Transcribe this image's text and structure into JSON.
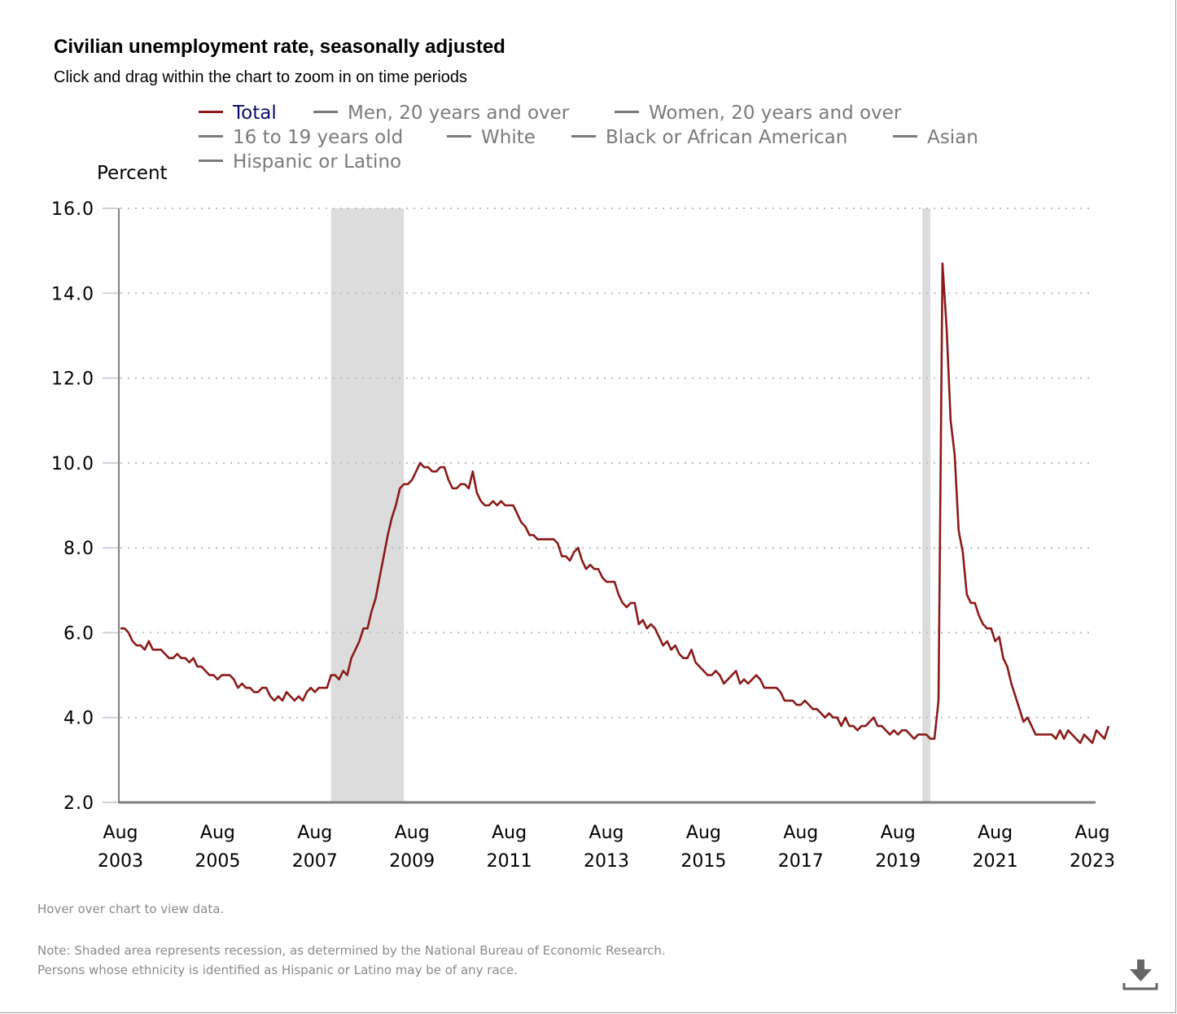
{
  "header": {
    "title": "Civilian unemployment rate, seasonally adjusted",
    "subtitle": "Click and drag within the chart to zoom in on time periods"
  },
  "legend": [
    {
      "label": "Total",
      "color": "#8b1a1a",
      "text_color": "#0b0b6b",
      "active": true
    },
    {
      "label": "Men, 20 years and over",
      "color": "#7a7a7a",
      "text_color": "#7a7a7a",
      "active": false
    },
    {
      "label": "Women, 20 years and over",
      "color": "#7a7a7a",
      "text_color": "#7a7a7a",
      "active": false
    },
    {
      "label": "16 to 19 years old",
      "color": "#7a7a7a",
      "text_color": "#7a7a7a",
      "active": false
    },
    {
      "label": "White",
      "color": "#7a7a7a",
      "text_color": "#7a7a7a",
      "active": false
    },
    {
      "label": "Black or African American",
      "color": "#7a7a7a",
      "text_color": "#7a7a7a",
      "active": false
    },
    {
      "label": "Asian",
      "color": "#7a7a7a",
      "text_color": "#7a7a7a",
      "active": false
    },
    {
      "label": "Hispanic or Latino",
      "color": "#7a7a7a",
      "text_color": "#7a7a7a",
      "active": false
    }
  ],
  "footer": {
    "hover_note": "Hover over chart to view data.",
    "note_line1": "Note: Shaded area represents recession, as determined by the National Bureau of Economic Research.",
    "note_line2": "Persons whose ethnicity is identified as Hispanic or Latino may be of any race.",
    "download_icon": "download-icon"
  },
  "chart_data": {
    "type": "line",
    "title": "Civilian unemployment rate, seasonally adjusted",
    "xlabel": "",
    "ylabel": "Percent",
    "ylim": [
      2.0,
      16.0
    ],
    "yticks": [
      "2.0",
      "4.0",
      "6.0",
      "8.0",
      "10.0",
      "12.0",
      "14.0",
      "16.0"
    ],
    "ytick_values": [
      2,
      4,
      6,
      8,
      10,
      12,
      14,
      16
    ],
    "xlim": [
      "2003-08",
      "2023-08"
    ],
    "xticks": [
      {
        "month": "Aug",
        "year": "2003",
        "index": 0
      },
      {
        "month": "Aug",
        "year": "2005",
        "index": 24
      },
      {
        "month": "Aug",
        "year": "2007",
        "index": 48
      },
      {
        "month": "Aug",
        "year": "2009",
        "index": 72
      },
      {
        "month": "Aug",
        "year": "2011",
        "index": 96
      },
      {
        "month": "Aug",
        "year": "2013",
        "index": 120
      },
      {
        "month": "Aug",
        "year": "2015",
        "index": 144
      },
      {
        "month": "Aug",
        "year": "2017",
        "index": 168
      },
      {
        "month": "Aug",
        "year": "2019",
        "index": 192
      },
      {
        "month": "Aug",
        "year": "2021",
        "index": 216
      },
      {
        "month": "Aug",
        "year": "2023",
        "index": 240
      }
    ],
    "grid": true,
    "legend_position": "top",
    "recessions": [
      {
        "start_index": 52,
        "end_index": 70,
        "label": "Dec 2007 - Jun 2009"
      },
      {
        "start_index": 198,
        "end_index": 200,
        "label": "Feb 2020 - Apr 2020"
      }
    ],
    "series": [
      {
        "name": "Total",
        "color": "#8b1a1a",
        "start": "2003-08",
        "frequency": "monthly",
        "values": [
          6.1,
          6.1,
          6.0,
          5.8,
          5.7,
          5.7,
          5.6,
          5.8,
          5.6,
          5.6,
          5.6,
          5.5,
          5.4,
          5.4,
          5.5,
          5.4,
          5.4,
          5.3,
          5.4,
          5.2,
          5.2,
          5.1,
          5.0,
          5.0,
          4.9,
          5.0,
          5.0,
          5.0,
          4.9,
          4.7,
          4.8,
          4.7,
          4.7,
          4.6,
          4.6,
          4.7,
          4.7,
          4.5,
          4.4,
          4.5,
          4.4,
          4.6,
          4.5,
          4.4,
          4.5,
          4.4,
          4.6,
          4.7,
          4.6,
          4.7,
          4.7,
          4.7,
          5.0,
          5.0,
          4.9,
          5.1,
          5.0,
          5.4,
          5.6,
          5.8,
          6.1,
          6.1,
          6.5,
          6.8,
          7.3,
          7.8,
          8.3,
          8.7,
          9.0,
          9.4,
          9.5,
          9.5,
          9.6,
          9.8,
          10.0,
          9.9,
          9.9,
          9.8,
          9.8,
          9.9,
          9.9,
          9.6,
          9.4,
          9.4,
          9.5,
          9.5,
          9.4,
          9.8,
          9.3,
          9.1,
          9.0,
          9.0,
          9.1,
          9.0,
          9.1,
          9.0,
          9.0,
          9.0,
          8.8,
          8.6,
          8.5,
          8.3,
          8.3,
          8.2,
          8.2,
          8.2,
          8.2,
          8.2,
          8.1,
          7.8,
          7.8,
          7.7,
          7.9,
          8.0,
          7.7,
          7.5,
          7.6,
          7.5,
          7.5,
          7.3,
          7.2,
          7.2,
          7.2,
          6.9,
          6.7,
          6.6,
          6.7,
          6.7,
          6.2,
          6.3,
          6.1,
          6.2,
          6.1,
          5.9,
          5.7,
          5.8,
          5.6,
          5.7,
          5.5,
          5.4,
          5.4,
          5.6,
          5.3,
          5.2,
          5.1,
          5.0,
          5.0,
          5.1,
          5.0,
          4.8,
          4.9,
          5.0,
          5.1,
          4.8,
          4.9,
          4.8,
          4.9,
          5.0,
          4.9,
          4.7,
          4.7,
          4.7,
          4.7,
          4.6,
          4.4,
          4.4,
          4.4,
          4.3,
          4.3,
          4.4,
          4.3,
          4.2,
          4.2,
          4.1,
          4.0,
          4.1,
          4.0,
          4.0,
          3.8,
          4.0,
          3.8,
          3.8,
          3.7,
          3.8,
          3.8,
          3.9,
          4.0,
          3.8,
          3.8,
          3.7,
          3.6,
          3.7,
          3.6,
          3.7,
          3.7,
          3.6,
          3.5,
          3.6,
          3.6,
          3.6,
          3.5,
          3.5,
          4.4,
          14.7,
          13.2,
          11.0,
          10.2,
          8.4,
          7.9,
          6.9,
          6.7,
          6.7,
          6.4,
          6.2,
          6.1,
          6.1,
          5.8,
          5.9,
          5.4,
          5.2,
          4.8,
          4.5,
          4.2,
          3.9,
          4.0,
          3.8,
          3.6,
          3.6,
          3.6,
          3.6,
          3.6,
          3.5,
          3.7,
          3.5,
          3.7,
          3.6,
          3.5,
          3.4,
          3.6,
          3.5,
          3.4,
          3.7,
          3.6,
          3.5,
          3.8
        ]
      }
    ]
  }
}
